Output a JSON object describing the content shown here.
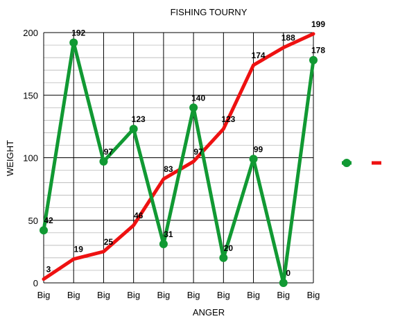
{
  "chart_data": {
    "type": "line",
    "title": "FISHING TOURNY",
    "xlabel": "ANGER",
    "ylabel": "WEIGHT",
    "categories": [
      "Big",
      "Big",
      "Big",
      "Big",
      "Big",
      "Big",
      "Big",
      "Big",
      "Big",
      "Big"
    ],
    "ylim": [
      0,
      200
    ],
    "yticks": [
      0,
      50,
      100,
      150,
      200
    ],
    "grid": true,
    "legend": "right",
    "series": [
      {
        "values": [
          3,
          19,
          25,
          46,
          83,
          97,
          123,
          174,
          188,
          199
        ],
        "color": "#ee1111",
        "marker": "none"
      },
      {
        "values": [
          42,
          192,
          97,
          123,
          31,
          140,
          20,
          99,
          0,
          178
        ],
        "color": "#119933",
        "marker": "circle"
      }
    ]
  }
}
